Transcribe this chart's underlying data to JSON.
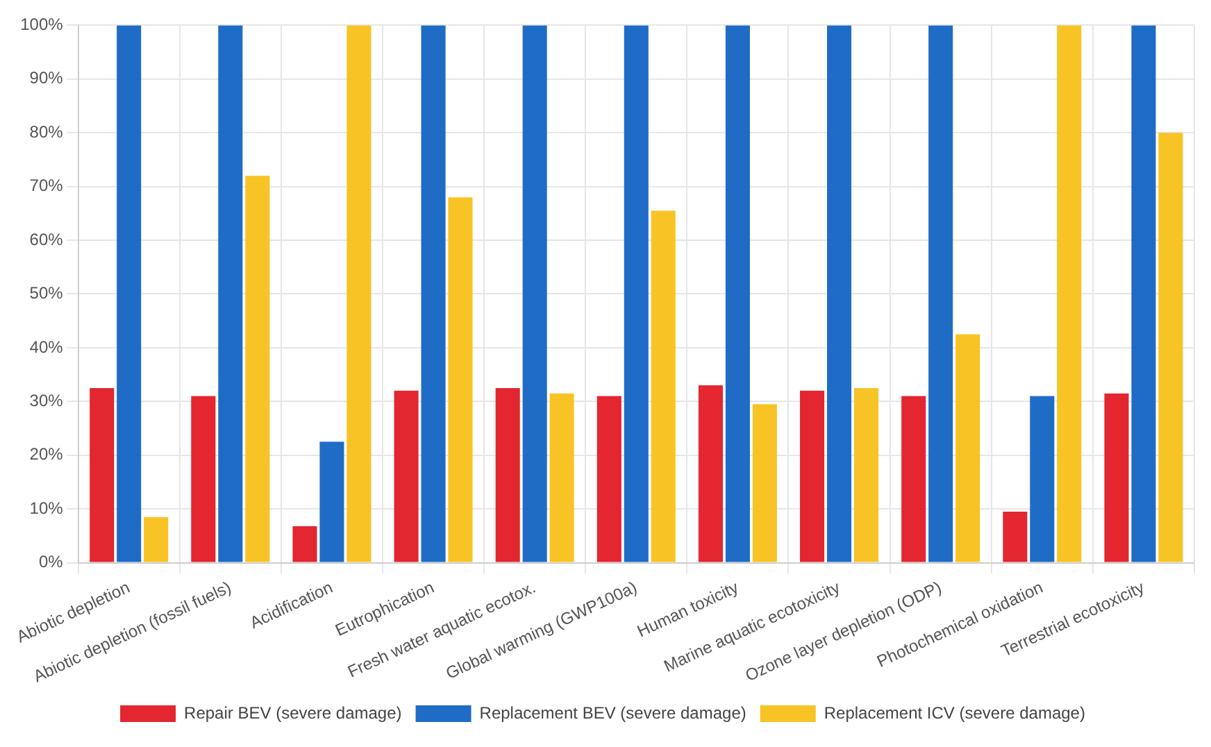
{
  "chart_data": {
    "type": "bar",
    "categories": [
      "Abiotic depletion",
      "Abiotic depletion (fossil fuels)",
      "Acidification",
      "Eutrophication",
      "Fresh water aquatic ecotox.",
      "Global warming (GWP100a)",
      "Human toxicity",
      "Marine aquatic ecotoxicity",
      "Ozone layer depletion (ODP)",
      "Photochemical oxidation",
      "Terrestrial ecotoxicity"
    ],
    "series": [
      {
        "name": "Repair BEV (severe damage)",
        "color": "#e3262f",
        "values": [
          32.5,
          31,
          6.8,
          32,
          32.5,
          31,
          33,
          32,
          31,
          9.5,
          31.5
        ]
      },
      {
        "name": "Replacement BEV (severe damage)",
        "color": "#1f6cc7",
        "values": [
          100,
          100,
          22.5,
          100,
          100,
          100,
          100,
          100,
          100,
          31,
          100
        ]
      },
      {
        "name": "Replacement ICV (severe damage)",
        "color": "#f8c324",
        "values": [
          8.5,
          72,
          100,
          68,
          31.5,
          65.5,
          29.5,
          32.5,
          42.5,
          100,
          80
        ]
      }
    ],
    "ylim": [
      0,
      100
    ],
    "yticks": [
      {
        "value": 0,
        "label": "0%"
      },
      {
        "value": 10,
        "label": "10%"
      },
      {
        "value": 20,
        "label": "20%"
      },
      {
        "value": 30,
        "label": "30%"
      },
      {
        "value": 40,
        "label": "40%"
      },
      {
        "value": 50,
        "label": "50%"
      },
      {
        "value": 60,
        "label": "60%"
      },
      {
        "value": 70,
        "label": "70%"
      },
      {
        "value": 80,
        "label": "80%"
      },
      {
        "value": 90,
        "label": "90%"
      },
      {
        "value": 100,
        "label": "100%"
      }
    ],
    "grid": true,
    "legend": "bottom"
  }
}
